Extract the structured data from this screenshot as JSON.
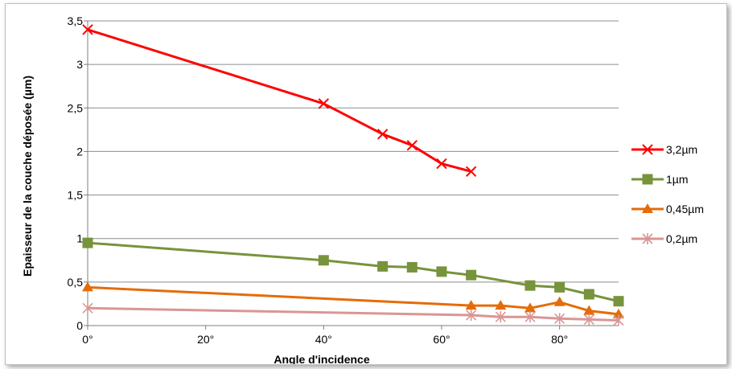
{
  "chart_data": {
    "type": "line",
    "title": "",
    "xlabel": "Angle d'incidence",
    "ylabel": "Epaisseur de la couche déposée (µm)",
    "xlim": [
      0,
      90
    ],
    "ylim": [
      0,
      3.5
    ],
    "x_ticks": [
      "0°",
      "20°",
      "40°",
      "60°",
      "80°"
    ],
    "x_tick_values": [
      0,
      20,
      40,
      60,
      80
    ],
    "y_ticks": [
      "0",
      "0,5",
      "1",
      "1,5",
      "2",
      "2,5",
      "3",
      "3,5"
    ],
    "y_tick_values": [
      0,
      0.5,
      1,
      1.5,
      2,
      2.5,
      3,
      3.5
    ],
    "grid": "horizontal",
    "legend_position": "right",
    "series": [
      {
        "name": "3,2µm",
        "color": "#ff0000",
        "marker": "x",
        "x": [
          0,
          40,
          50,
          55,
          60,
          65
        ],
        "y": [
          3.4,
          2.55,
          2.2,
          2.07,
          1.86,
          1.77
        ]
      },
      {
        "name": "1µm",
        "color": "#77933c",
        "marker": "square",
        "x": [
          0,
          40,
          50,
          55,
          60,
          65,
          75,
          80,
          85,
          90
        ],
        "y": [
          0.95,
          0.75,
          0.68,
          0.67,
          0.62,
          0.58,
          0.46,
          0.44,
          0.36,
          0.28
        ]
      },
      {
        "name": "0,45µm",
        "color": "#e46c0a",
        "marker": "triangle",
        "x": [
          0,
          65,
          70,
          75,
          80,
          85,
          90
        ],
        "y": [
          0.44,
          0.23,
          0.23,
          0.2,
          0.27,
          0.17,
          0.13
        ]
      },
      {
        "name": "0,2µm",
        "color": "#d99694",
        "marker": "star",
        "x": [
          0,
          65,
          70,
          75,
          80,
          85,
          90
        ],
        "y": [
          0.2,
          0.12,
          0.1,
          0.1,
          0.08,
          0.07,
          0.06
        ]
      }
    ]
  }
}
